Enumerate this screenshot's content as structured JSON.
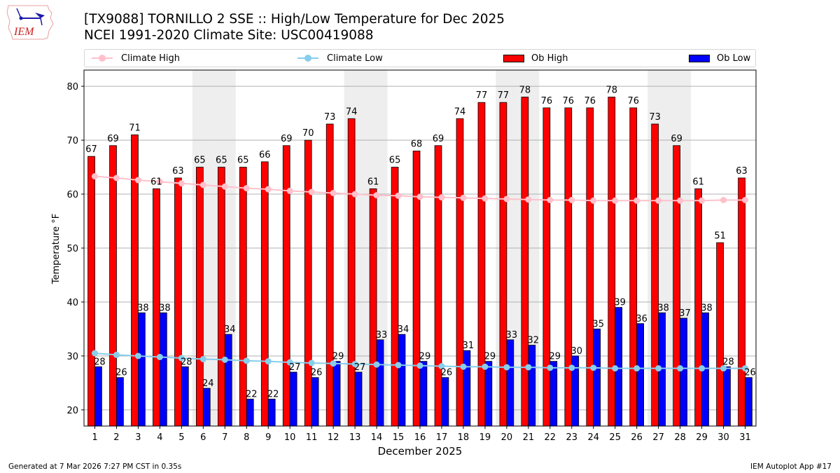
{
  "header": {
    "title_line1": "[TX9088] TORNILLO 2 SSE :: High/Low Temperature for Dec 2025",
    "title_line2": "NCEI 1991-2020 Climate Site: USC00419088",
    "logo_text": "IEM"
  },
  "legend": {
    "climate_high": "Climate High",
    "climate_low": "Climate Low",
    "ob_high": "Ob High",
    "ob_low": "Ob Low"
  },
  "colors": {
    "ob_high": "#ff0000",
    "ob_low": "#0000ff",
    "climate_high": "#ffc0cb",
    "climate_low": "#87ceeb",
    "weekend_shade": "#eeeeee",
    "grid": "#b0b0b0"
  },
  "footer": {
    "generated": "Generated at 7 Mar 2026 7:27 PM CST in 0.35s",
    "app": "IEM Autoplot App #17"
  },
  "chart_data": {
    "type": "bar",
    "title": "[TX9088] TORNILLO 2 SSE :: High/Low Temperature for Dec 2025",
    "subtitle": "NCEI 1991-2020 Climate Site: USC00419088",
    "xlabel": "December 2025",
    "ylabel": "Temperature °F",
    "ylim": [
      17,
      83
    ],
    "yticks": [
      20,
      30,
      40,
      50,
      60,
      70,
      80
    ],
    "grid": true,
    "legend_position": "top",
    "categories": [
      "1",
      "2",
      "3",
      "4",
      "5",
      "6",
      "7",
      "8",
      "9",
      "10",
      "11",
      "12",
      "13",
      "14",
      "15",
      "16",
      "17",
      "18",
      "19",
      "20",
      "21",
      "22",
      "23",
      "24",
      "25",
      "26",
      "27",
      "28",
      "29",
      "30",
      "31"
    ],
    "weekend_days": [
      6,
      7,
      13,
      14,
      20,
      21,
      27,
      28
    ],
    "series": [
      {
        "name": "Ob High",
        "type": "bar",
        "values": [
          67,
          69,
          71,
          61,
          63,
          65,
          65,
          65,
          66,
          69,
          70,
          73,
          74,
          61,
          65,
          68,
          69,
          74,
          77,
          77,
          78,
          76,
          76,
          76,
          78,
          76,
          73,
          69,
          61,
          51,
          63
        ]
      },
      {
        "name": "Ob Low",
        "type": "bar",
        "values": [
          28,
          26,
          38,
          38,
          28,
          24,
          34,
          22,
          22,
          27,
          26,
          29,
          27,
          33,
          34,
          29,
          26,
          31,
          29,
          33,
          32,
          29,
          30,
          35,
          39,
          36,
          38,
          37,
          38,
          28,
          26
        ]
      },
      {
        "name": "Climate High",
        "type": "line",
        "values": [
          63.3,
          63.0,
          62.6,
          62.3,
          62.0,
          61.7,
          61.4,
          61.1,
          60.9,
          60.6,
          60.4,
          60.2,
          60.0,
          59.8,
          59.7,
          59.5,
          59.4,
          59.3,
          59.2,
          59.1,
          59.0,
          58.9,
          58.9,
          58.8,
          58.8,
          58.8,
          58.8,
          58.8,
          58.8,
          58.9,
          58.9
        ]
      },
      {
        "name": "Climate Low",
        "type": "line",
        "values": [
          30.5,
          30.2,
          30.0,
          29.8,
          29.6,
          29.4,
          29.3,
          29.1,
          29.0,
          28.8,
          28.7,
          28.6,
          28.5,
          28.4,
          28.3,
          28.2,
          28.1,
          28.0,
          28.0,
          27.9,
          27.9,
          27.8,
          27.8,
          27.8,
          27.7,
          27.7,
          27.7,
          27.7,
          27.7,
          27.7,
          27.7
        ]
      }
    ]
  }
}
